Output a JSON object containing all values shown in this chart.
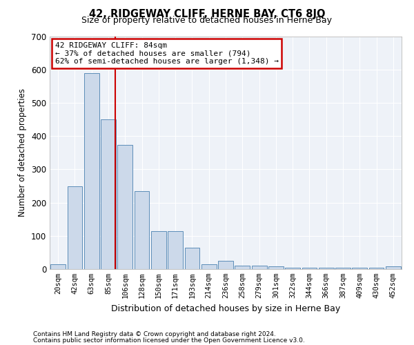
{
  "title": "42, RIDGEWAY CLIFF, HERNE BAY, CT6 8JQ",
  "subtitle": "Size of property relative to detached houses in Herne Bay",
  "xlabel": "Distribution of detached houses by size in Herne Bay",
  "ylabel": "Number of detached properties",
  "bar_color": "#ccd9ea",
  "bar_edge_color": "#5b8db8",
  "background_color": "#eef2f8",
  "grid_color": "#ffffff",
  "categories": [
    "20sqm",
    "42sqm",
    "63sqm",
    "85sqm",
    "106sqm",
    "128sqm",
    "150sqm",
    "171sqm",
    "193sqm",
    "214sqm",
    "236sqm",
    "258sqm",
    "279sqm",
    "301sqm",
    "322sqm",
    "344sqm",
    "366sqm",
    "387sqm",
    "409sqm",
    "430sqm",
    "452sqm"
  ],
  "values": [
    15,
    248,
    590,
    450,
    373,
    235,
    115,
    115,
    65,
    15,
    25,
    10,
    10,
    8,
    5,
    5,
    5,
    4,
    5,
    5,
    8
  ],
  "vline_x": 3.42,
  "annotation_title": "42 RIDGEWAY CLIFF: 84sqm",
  "annotation_line1": "← 37% of detached houses are smaller (794)",
  "annotation_line2": "62% of semi-detached houses are larger (1,348) →",
  "annotation_box_color": "#ffffff",
  "annotation_box_edge": "#cc0000",
  "vline_color": "#cc0000",
  "footnote1": "Contains HM Land Registry data © Crown copyright and database right 2024.",
  "footnote2": "Contains public sector information licensed under the Open Government Licence v3.0.",
  "ylim": [
    0,
    700
  ],
  "yticks": [
    0,
    100,
    200,
    300,
    400,
    500,
    600,
    700
  ],
  "fig_width": 6.0,
  "fig_height": 5.0,
  "dpi": 100
}
